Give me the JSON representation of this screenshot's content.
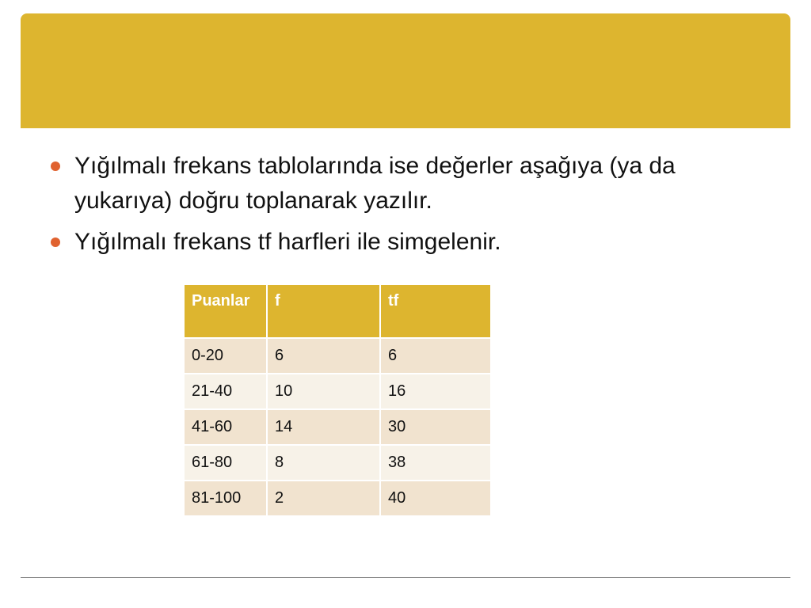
{
  "colors": {
    "accent": "#DDB52F",
    "bullet": "#E0622F",
    "row_odd": "#F1E3CF",
    "row_even": "#F7F2E8"
  },
  "bullets": [
    "Yığılmalı frekans tablolarında ise değerler aşağıya (ya da yukarıya) doğru toplanarak yazılır.",
    "Yığılmalı frekans tf harfleri ile simgelenir."
  ],
  "table": {
    "headers": [
      "Puanlar",
      "f",
      "tf"
    ],
    "rows": [
      [
        "0-20",
        "6",
        "6"
      ],
      [
        "21-40",
        "10",
        "16"
      ],
      [
        "41-60",
        "14",
        "30"
      ],
      [
        "61-80",
        "8",
        "38"
      ],
      [
        "81-100",
        "2",
        "40"
      ]
    ]
  }
}
